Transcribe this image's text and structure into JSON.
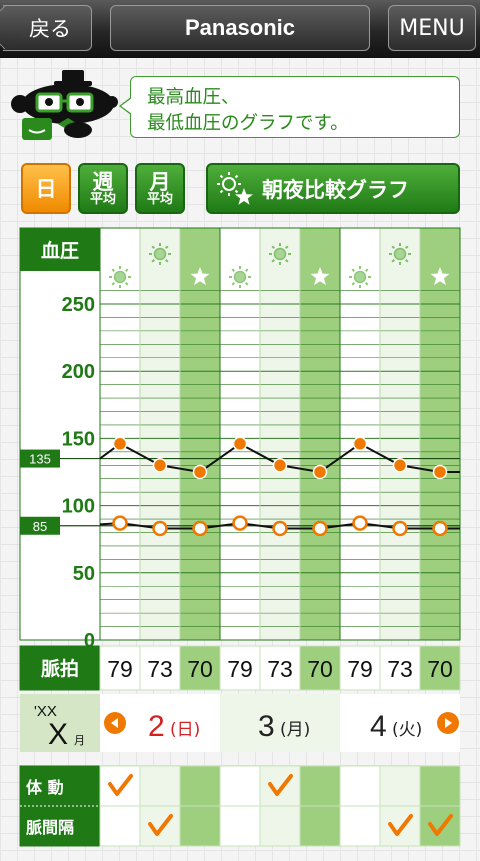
{
  "nav": {
    "back_label": "戻る",
    "title": "Panasonic",
    "menu_label": "MENU"
  },
  "bubble": {
    "line1": "最高血圧、",
    "line2": "最低血圧のグラフです。"
  },
  "modes": {
    "day": "日",
    "week_big": "週",
    "week_small": "平均",
    "month_big": "月",
    "month_small": "平均"
  },
  "compare_label": "朝夜比較グラフ",
  "chart_label": "血圧",
  "colors": {
    "green": "#1f7a16",
    "light_green": "#9dcf7e",
    "orange": "#f07800",
    "red": "#d42020"
  },
  "chart_data": {
    "type": "line",
    "ylabel": "血圧",
    "ylim": [
      0,
      270
    ],
    "yticks": [
      0,
      50,
      100,
      150,
      200,
      250
    ],
    "slots": [
      "sun-faded",
      "sun",
      "star",
      "sun-faded",
      "sun",
      "star",
      "sun-faded",
      "sun",
      "star"
    ],
    "reference_lines": [
      135,
      85
    ],
    "series": [
      {
        "name": "最高血圧",
        "values": [
          146,
          130,
          125,
          146,
          130,
          125,
          146,
          130,
          125
        ]
      },
      {
        "name": "最低血圧",
        "values": [
          87,
          83,
          83,
          87,
          83,
          83,
          87,
          83,
          83
        ]
      }
    ]
  },
  "pulse": {
    "label": "脈拍",
    "values": [
      "79",
      "73",
      "70",
      "79",
      "73",
      "70",
      "79",
      "73",
      "70"
    ]
  },
  "dates": {
    "year": "'XX",
    "month": "X",
    "month_unit": "月",
    "days": [
      {
        "day": "2",
        "weekday": "(日)",
        "color": "#d42020"
      },
      {
        "day": "3",
        "weekday": "(月)",
        "color": "#222222"
      },
      {
        "day": "4",
        "weekday": "(火)",
        "color": "#222222"
      }
    ]
  },
  "flags": {
    "body_motion_label": "体 動",
    "pulse_interval_label": "脈間隔",
    "body_motion": [
      true,
      false,
      false,
      false,
      true,
      false,
      false,
      false,
      false
    ],
    "pulse_interval": [
      false,
      true,
      false,
      false,
      false,
      false,
      false,
      true,
      true
    ]
  }
}
